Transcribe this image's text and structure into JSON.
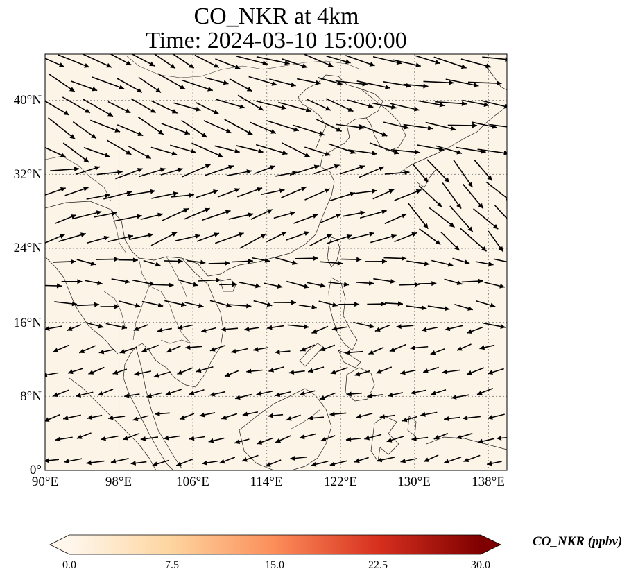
{
  "title": {
    "line1": "CO_NKR at 4km",
    "line2": "Time: 2024-03-10 15:00:00"
  },
  "map": {
    "extent_lon": [
      90,
      140
    ],
    "extent_lat": [
      0,
      45
    ],
    "lat_ticks": [
      "0°",
      "8°N",
      "16°N",
      "24°N",
      "32°N",
      "40°N"
    ],
    "lon_ticks": [
      "90°E",
      "98°E",
      "106°E",
      "114°E",
      "122°E",
      "130°E",
      "138°E"
    ],
    "field_color": "#fdf4e8",
    "gridline_style": "dotted"
  },
  "colorbar": {
    "label": "CO_NKR (ppbv)",
    "ticks": [
      "0.0",
      "7.5",
      "15.0",
      "22.5",
      "30.0"
    ],
    "min": 0,
    "max": 30,
    "extend": "both",
    "cmap_stops": [
      "#fff7ec",
      "#fdd49e",
      "#fc8d59",
      "#d7301f",
      "#7f0000"
    ]
  }
}
